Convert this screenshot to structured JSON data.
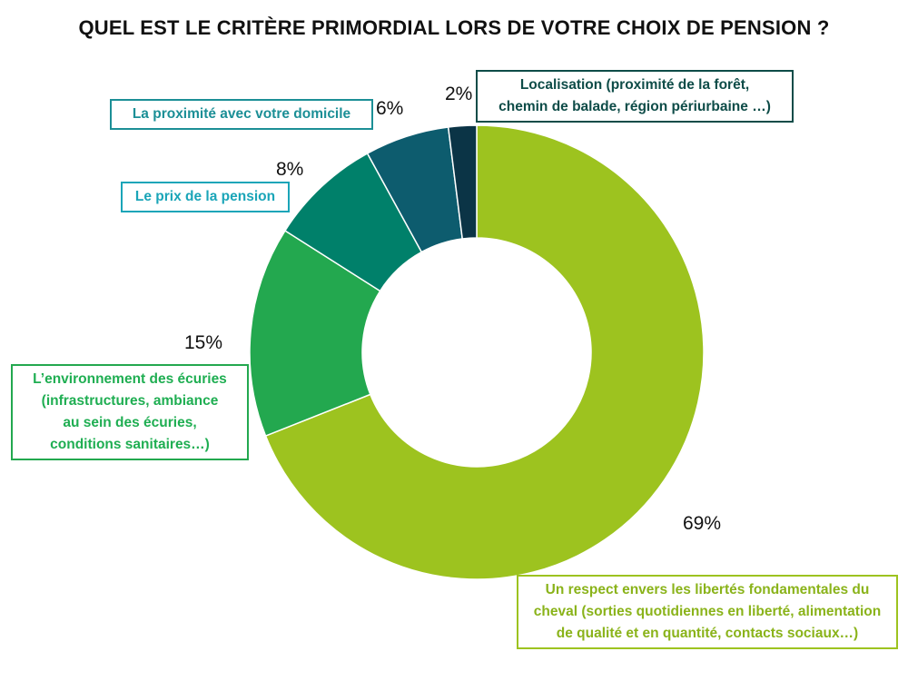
{
  "chart_data": {
    "type": "pie",
    "title": "QUEL EST LE CRITÈRE PRIMORDIAL LORS DE VOTRE CHOIX DE PENSION ?",
    "categories": [
      "Un respect envers les libertés fondamentales du cheval (sorties quotidiennes en liberté, alimentation de qualité et en quantité, contacts sociaux…)",
      "L’environnement des écuries (infrastructures, ambiance au sein des écuries, conditions sanitaires…)",
      "Le prix de la pension",
      "La proximité avec votre domicile",
      "Localisation (proximité de la forêt, chemin de balade, région périurbaine …)"
    ],
    "values": [
      69,
      15,
      8,
      6,
      2
    ],
    "value_labels": [
      "69%",
      "15%",
      "8%",
      "6%",
      "2%"
    ],
    "colors": [
      "#9dc31f",
      "#23a84f",
      "#00806a",
      "#0d5c6e",
      "#0b3446"
    ],
    "label_colors": [
      "#8ab31a",
      "#1fae52",
      "#1aa5b8",
      "#1c8f96",
      "#0e4c48"
    ],
    "donut": true,
    "legend": "none"
  }
}
